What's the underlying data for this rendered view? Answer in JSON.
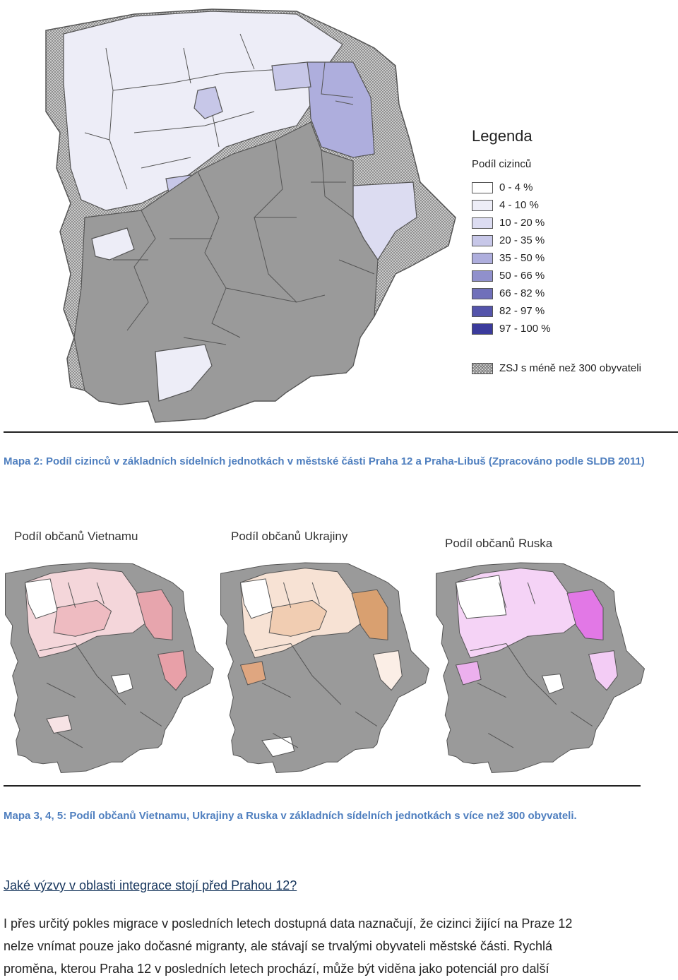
{
  "legend": {
    "title": "Legenda",
    "subtitle": "Podíl cizinců",
    "classes": [
      {
        "label": "0 - 4 %",
        "color": "#ffffff"
      },
      {
        "label": "4 - 10 %",
        "color": "#ededf7"
      },
      {
        "label": "10 - 20 %",
        "color": "#dcdcf1"
      },
      {
        "label": "20 - 35 %",
        "color": "#c7c7e8"
      },
      {
        "label": "35 - 50 %",
        "color": "#aeaedd"
      },
      {
        "label": "50 - 66 %",
        "color": "#9090cc"
      },
      {
        "label": "66 - 82 %",
        "color": "#7070ba"
      },
      {
        "label": "82 - 97 %",
        "color": "#5454ab"
      },
      {
        "label": "97 - 100 %",
        "color": "#3b3b9c"
      }
    ],
    "hatched_label": "ZSJ s méně než 300 obyvateli"
  },
  "caption1": "Mapa 2: Podíl cizinců v základních sídelních jednotkách v městské části Praha 12 a Praha-Libuš (Zpracováno podle SLDB 2011)",
  "small_maps": [
    {
      "title": "Podíl občanů Vietnamu",
      "accent": "#e8a0a8"
    },
    {
      "title": "Podíl občanů Ukrajiny",
      "accent": "#d9a070"
    },
    {
      "title": "Podíl občanů Ruska",
      "accent": "#e9a0ec"
    }
  ],
  "caption2": "Mapa 3, 4, 5: Podíl občanů Vietnamu, Ukrajiny a Ruska v základních sídelních jednotkách s více než 300 obyvateli.",
  "heading": "Jaké výzvy v oblasti integrace stojí před Prahou 12?",
  "paragraph": [
    "I přes určitý pokles migrace v posledních letech dostupná data naznačují, že cizinci žijící na Praze 12",
    "nelze vnímat pouze jako dočasné migranty, ale stávají se trvalými obyvateli městské části.  Rychlá",
    "proměna, kterou Praha 12 v posledních letech prochází, může být viděna jako potenciál pro další"
  ]
}
